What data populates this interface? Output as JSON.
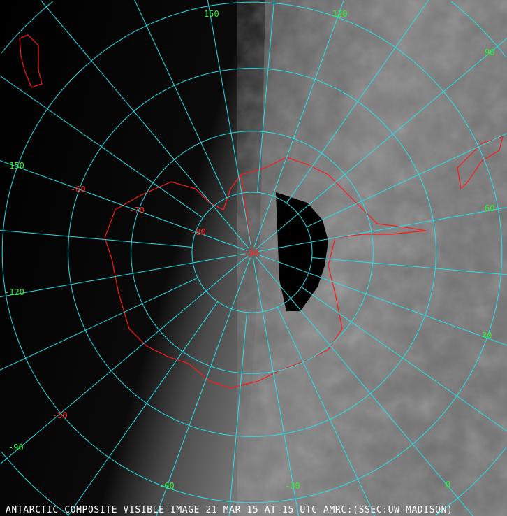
{
  "caption": "ANTARCTIC COMPOSITE VISIBLE IMAGE 21 MAR 15 AT 15 UTC AMRC:(SSEC:UW-MADISON)",
  "projection": "polar-stereographic-south",
  "colors": {
    "grid": "#22e0e8",
    "coast": "#ff1a1a",
    "lon_label": "#33ee33",
    "lat_label": "#ff2222",
    "caption": "#ffffff"
  },
  "latitude_circles": [
    -80,
    -70,
    -60,
    -50,
    -40,
    -30,
    -20,
    -10
  ],
  "latitude_labels": [
    "-90",
    "-80",
    "-70",
    "-60",
    "-50"
  ],
  "longitude_labels": [
    "150",
    "120",
    "90",
    "60",
    "30",
    "0",
    "-30",
    "-60",
    "-90",
    "-120",
    "-150"
  ]
}
